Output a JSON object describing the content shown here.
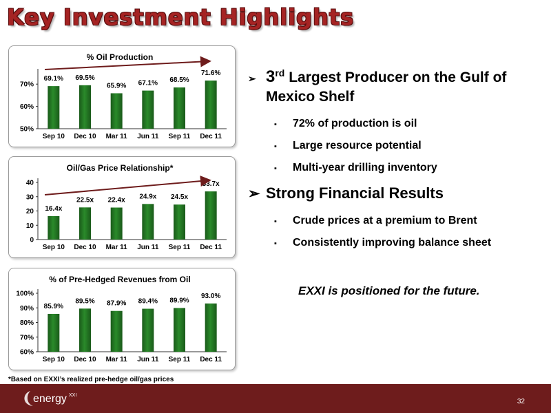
{
  "page": {
    "title": "Key Investment Highlights",
    "footnote": "*Based on EXXI’s realized pre-hedge oil/gas prices",
    "tagline": "EXXI is positioned for the future.",
    "page_number": "32",
    "logo_text": "energy",
    "logo_sup": "XXI"
  },
  "bullets": {
    "first": {
      "marker": "➢",
      "number": "3",
      "sup": "rd",
      "text": " Largest Producer on the Gulf of Mexico Shelf",
      "sub": [
        "72% of production is oil",
        "Large resource potential",
        "Multi-year drilling inventory"
      ]
    },
    "second": {
      "marker": "➢",
      "text": "Strong Financial Results",
      "sub": [
        "Crude prices at a premium to Brent",
        "Consistently improving balance sheet"
      ]
    },
    "sub_marker": "▪"
  },
  "colors": {
    "bar": "#2a8a2a",
    "bar_dark": "#1a5a1a",
    "arrow": "#6e1c1c",
    "title": "#a52323",
    "footer": "#6e1c1c"
  },
  "chart_data": [
    {
      "type": "bar",
      "title": "% Oil Production",
      "categories": [
        "Sep 10",
        "Dec 10",
        "Mar 11",
        "Jun 11",
        "Sep 11",
        "Dec 11"
      ],
      "values": [
        69.1,
        69.5,
        65.9,
        67.1,
        68.5,
        71.6
      ],
      "labels": [
        "69.1%",
        "69.5%",
        "65.9%",
        "67.1%",
        "68.5%",
        "71.6%"
      ],
      "ylim": [
        50,
        75
      ],
      "yticks": [
        50,
        60,
        70
      ],
      "ytick_labels": [
        "50%",
        "60%",
        "70%"
      ],
      "trend_arrow": true
    },
    {
      "type": "bar",
      "title": "Oil/Gas Price Relationship*",
      "categories": [
        "Sep 10",
        "Dec 10",
        "Mar 11",
        "Jun 11",
        "Sep 11",
        "Dec 11"
      ],
      "values": [
        16.4,
        22.5,
        22.4,
        24.9,
        24.5,
        33.7
      ],
      "labels": [
        "16.4x",
        "22.5x",
        "22.4x",
        "24.9x",
        "24.5x",
        "33.7x"
      ],
      "ylim": [
        0,
        40
      ],
      "yticks": [
        0,
        10,
        20,
        30,
        40
      ],
      "ytick_labels": [
        "0",
        "10",
        "20",
        "30",
        "40"
      ],
      "trend_arrow": true
    },
    {
      "type": "bar",
      "title": "% of Pre-Hedged Revenues from Oil",
      "categories": [
        "Sep 10",
        "Dec 10",
        "Mar 11",
        "Jun 11",
        "Sep 11",
        "Dec 11"
      ],
      "values": [
        85.9,
        89.5,
        87.9,
        89.4,
        89.9,
        93.0
      ],
      "labels": [
        "85.9%",
        "89.5%",
        "87.9%",
        "89.4%",
        "89.9%",
        "93.0%"
      ],
      "ylim": [
        60,
        100
      ],
      "yticks": [
        60,
        70,
        80,
        90,
        100
      ],
      "ytick_labels": [
        "60%",
        "70%",
        "80%",
        "90%",
        "100%"
      ],
      "trend_arrow": false
    }
  ]
}
